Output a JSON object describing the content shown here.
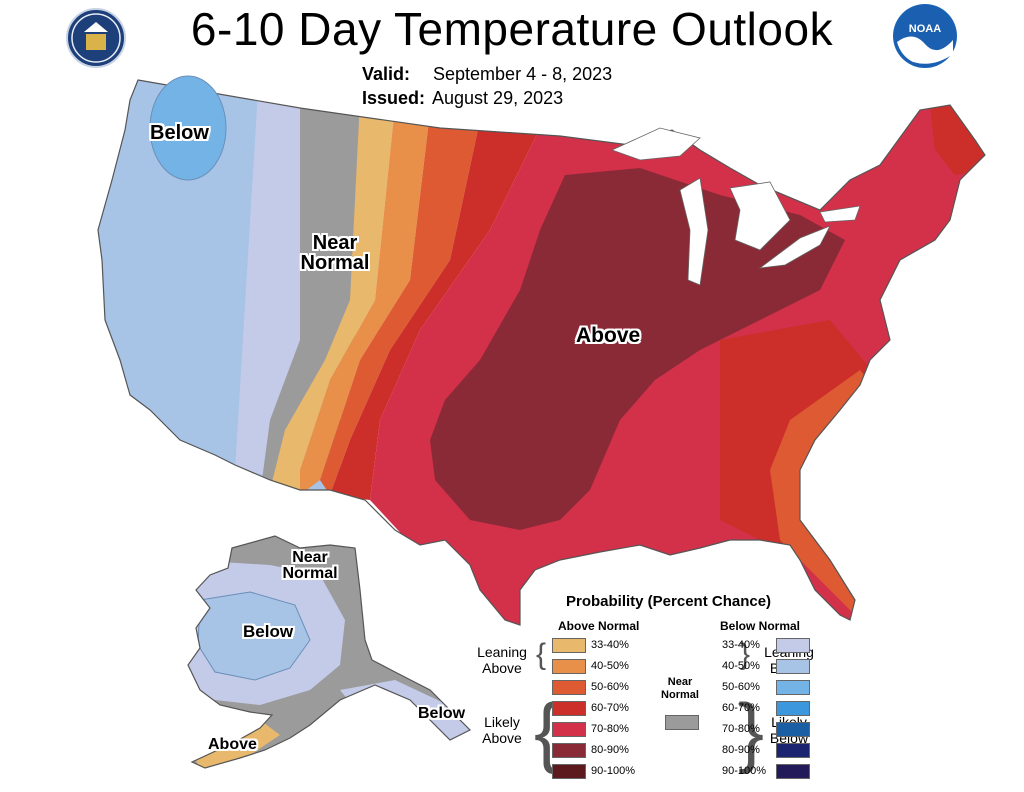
{
  "header": {
    "title": "6-10 Day Temperature Outlook",
    "valid_label": "Valid:",
    "valid_value": "September 4 - 8, 2023",
    "issued_label": "Issued:",
    "issued_value": "August 29, 2023"
  },
  "logos": {
    "left": "department-of-commerce-seal",
    "right": "noaa-logo",
    "noaa_text": "NOAA"
  },
  "map_labels": {
    "conus_below": "Below",
    "conus_near": "Near Normal",
    "conus_above": "Above",
    "ak_near": "Near Normal",
    "ak_below": "Below",
    "ak_above": "Above",
    "ak_panhandle_below": "Below"
  },
  "colors": {
    "above": [
      "#e8b86c",
      "#e8904a",
      "#dd5a32",
      "#cc2e2a",
      "#d3304a",
      "#8a2a36",
      "#5c1a1e"
    ],
    "below": [
      "#c3cbe8",
      "#a7c3e6",
      "#74b3e5",
      "#3c97dc",
      "#1a5ea3",
      "#1a2470",
      "#231a5a"
    ],
    "near": "#9b9b9b"
  },
  "legend": {
    "title": "Probability (Percent Chance)",
    "above_header": "Above Normal",
    "below_header": "Below Normal",
    "near_label": "Near Normal",
    "leaning_above": "Leaning Above",
    "likely_above": "Likely Above",
    "leaning_below": "Leaning Below",
    "likely_below": "Likely Below",
    "ranges": [
      "33-40%",
      "40-50%",
      "50-60%",
      "60-70%",
      "70-80%",
      "80-90%",
      "90-100%"
    ]
  }
}
